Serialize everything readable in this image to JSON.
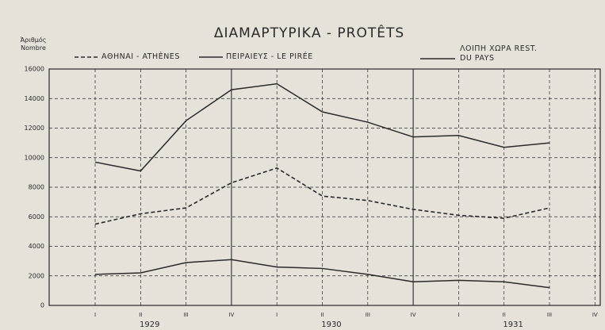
{
  "chart_data": {
    "type": "line",
    "title": "ΔΙΑΜΑΡΤΥΡΙΚΑ - PROTÊTS",
    "y_label": "Ἀριθμός Nombre",
    "categories": [
      "I",
      "II",
      "III",
      "IV",
      "I",
      "II",
      "III",
      "IV",
      "I",
      "II",
      "III",
      "IV"
    ],
    "x_groups": [
      "1929",
      "1930",
      "1931"
    ],
    "series": [
      {
        "name": "ΑΘΗΝΑΙ - ATHÈNES",
        "color": "#2a2a2a",
        "style": "dashed",
        "values": [
          5500,
          6200,
          6600,
          8300,
          9300,
          7400,
          7100,
          6500,
          6100,
          5900,
          6600,
          null
        ]
      },
      {
        "name": "ΠΕΙΡΑΙΕΥΣ - LE PIRÉE",
        "color": "#2a2a2a",
        "style": "solid",
        "values": [
          2100,
          2200,
          2900,
          3100,
          2600,
          2500,
          2100,
          1600,
          1700,
          1600,
          1200,
          null
        ]
      },
      {
        "name": "ΛΟΙΠΗ ΧΩΡΑ REST. DU PAYS",
        "color": "#2a2a2a",
        "style": "solid",
        "values": [
          9700,
          9100,
          12500,
          14600,
          15000,
          13100,
          12400,
          11400,
          11500,
          10700,
          11000,
          null
        ]
      }
    ],
    "ylim": [
      0,
      16000
    ],
    "yticks": [
      0,
      2000,
      4000,
      6000,
      8000,
      10000,
      12000,
      14000,
      16000
    ],
    "grid": true
  }
}
